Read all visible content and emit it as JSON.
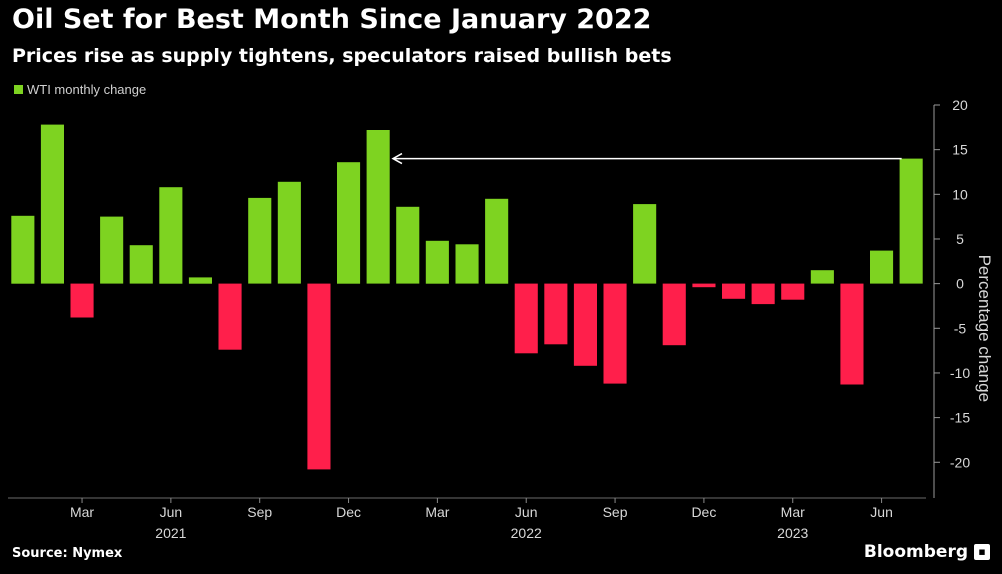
{
  "header": {
    "title": "Oil Set for Best Month Since January 2022",
    "subtitle": "Prices rise as supply tightens, speculators raised bullish bets"
  },
  "footer": {
    "source": "Source: Nymex",
    "brand": "Bloomberg"
  },
  "colors": {
    "positive": "#7ed321",
    "negative": "#ff1f4b",
    "background": "#000000",
    "gridline": "#3a3a3a",
    "arrow": "#ffffff"
  },
  "chart_data": {
    "type": "bar",
    "title": "Oil Set for Best Month Since January 2022",
    "subtitle": "Prices rise as supply tightens, speculators raised bullish bets",
    "ylabel": "Percentage change",
    "ylim": [
      -24,
      20
    ],
    "yticks": [
      20,
      15,
      10,
      5,
      0,
      -5,
      -10,
      -15,
      -20
    ],
    "ytick_labels": [
      "20",
      "15",
      "10",
      "5",
      "0",
      "-5",
      "-10",
      "-15",
      "-20"
    ],
    "axis_side": "right",
    "grid": false,
    "legend_position": "top-left",
    "series": [
      {
        "name": "WTI monthly change",
        "categories": [
          "Jan 2021",
          "Feb 2021",
          "Mar 2021",
          "Apr 2021",
          "May 2021",
          "Jun 2021",
          "Jul 2021",
          "Aug 2021",
          "Sep 2021",
          "Oct 2021",
          "Nov 2021",
          "Dec 2021",
          "Jan 2022",
          "Feb 2022",
          "Mar 2022",
          "Apr 2022",
          "May 2022",
          "Jun 2022",
          "Jul 2022",
          "Aug 2022",
          "Sep 2022",
          "Oct 2022",
          "Nov 2022",
          "Dec 2022",
          "Jan 2023",
          "Feb 2023",
          "Mar 2023",
          "Apr 2023",
          "May 2023",
          "Jun 2023",
          "Jul 2023"
        ],
        "values": [
          7.6,
          17.8,
          -3.8,
          7.5,
          4.3,
          10.8,
          0.7,
          -7.4,
          9.6,
          11.4,
          -20.8,
          13.6,
          17.2,
          8.6,
          4.8,
          4.4,
          9.5,
          -7.8,
          -6.8,
          -9.2,
          -11.2,
          8.9,
          -6.9,
          -0.4,
          -1.7,
          -2.3,
          -1.8,
          1.5,
          -11.3,
          3.7,
          14.0
        ]
      }
    ],
    "x_tick_labels": [
      {
        "label": "Mar",
        "index": 2
      },
      {
        "label": "Jun",
        "index": 5
      },
      {
        "label": "Sep",
        "index": 8
      },
      {
        "label": "Dec",
        "index": 11
      },
      {
        "label": "Mar",
        "index": 14
      },
      {
        "label": "Jun",
        "index": 17
      },
      {
        "label": "Sep",
        "index": 20
      },
      {
        "label": "Dec",
        "index": 23
      },
      {
        "label": "Mar",
        "index": 26
      },
      {
        "label": "Jun",
        "index": 29
      }
    ],
    "year_labels": [
      {
        "label": "2021",
        "index": 5
      },
      {
        "label": "2022",
        "index": 17
      },
      {
        "label": "2023",
        "index": 26
      }
    ],
    "annotation": {
      "type": "arrow",
      "from_index": 30,
      "to_index": 12.5,
      "y": 14.0
    }
  }
}
